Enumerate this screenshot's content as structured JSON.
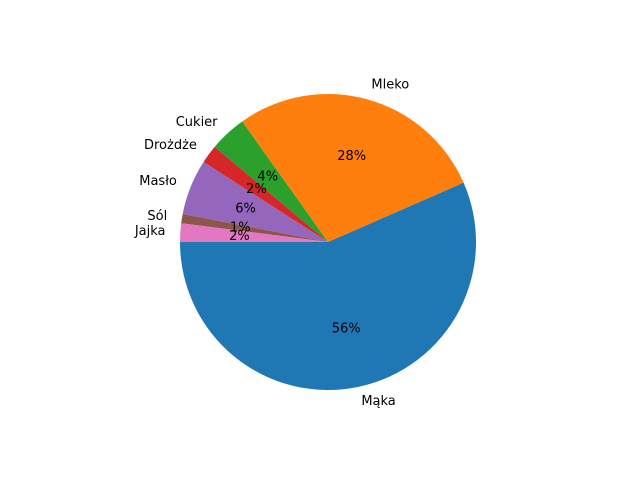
{
  "chart_data": {
    "type": "pie",
    "start_angle_deg": 180,
    "direction": "counterclockwise",
    "slices": [
      {
        "label": "Mąka",
        "value": 56,
        "pct_label": "56%",
        "color": "#1f77b4"
      },
      {
        "label": "Mleko",
        "value": 28,
        "pct_label": "28%",
        "color": "#ff7f0e"
      },
      {
        "label": "Cukier",
        "value": 4,
        "pct_label": "4%",
        "color": "#2ca02c"
      },
      {
        "label": "Drożdże",
        "value": 2,
        "pct_label": "2%",
        "color": "#d62728"
      },
      {
        "label": "Masło",
        "value": 6,
        "pct_label": "6%",
        "color": "#9467bd"
      },
      {
        "label": "Sól",
        "value": 1,
        "pct_label": "1%",
        "color": "#8c564b"
      },
      {
        "label": "Jajka",
        "value": 2,
        "pct_label": "2%",
        "color": "#e377c2"
      }
    ]
  }
}
